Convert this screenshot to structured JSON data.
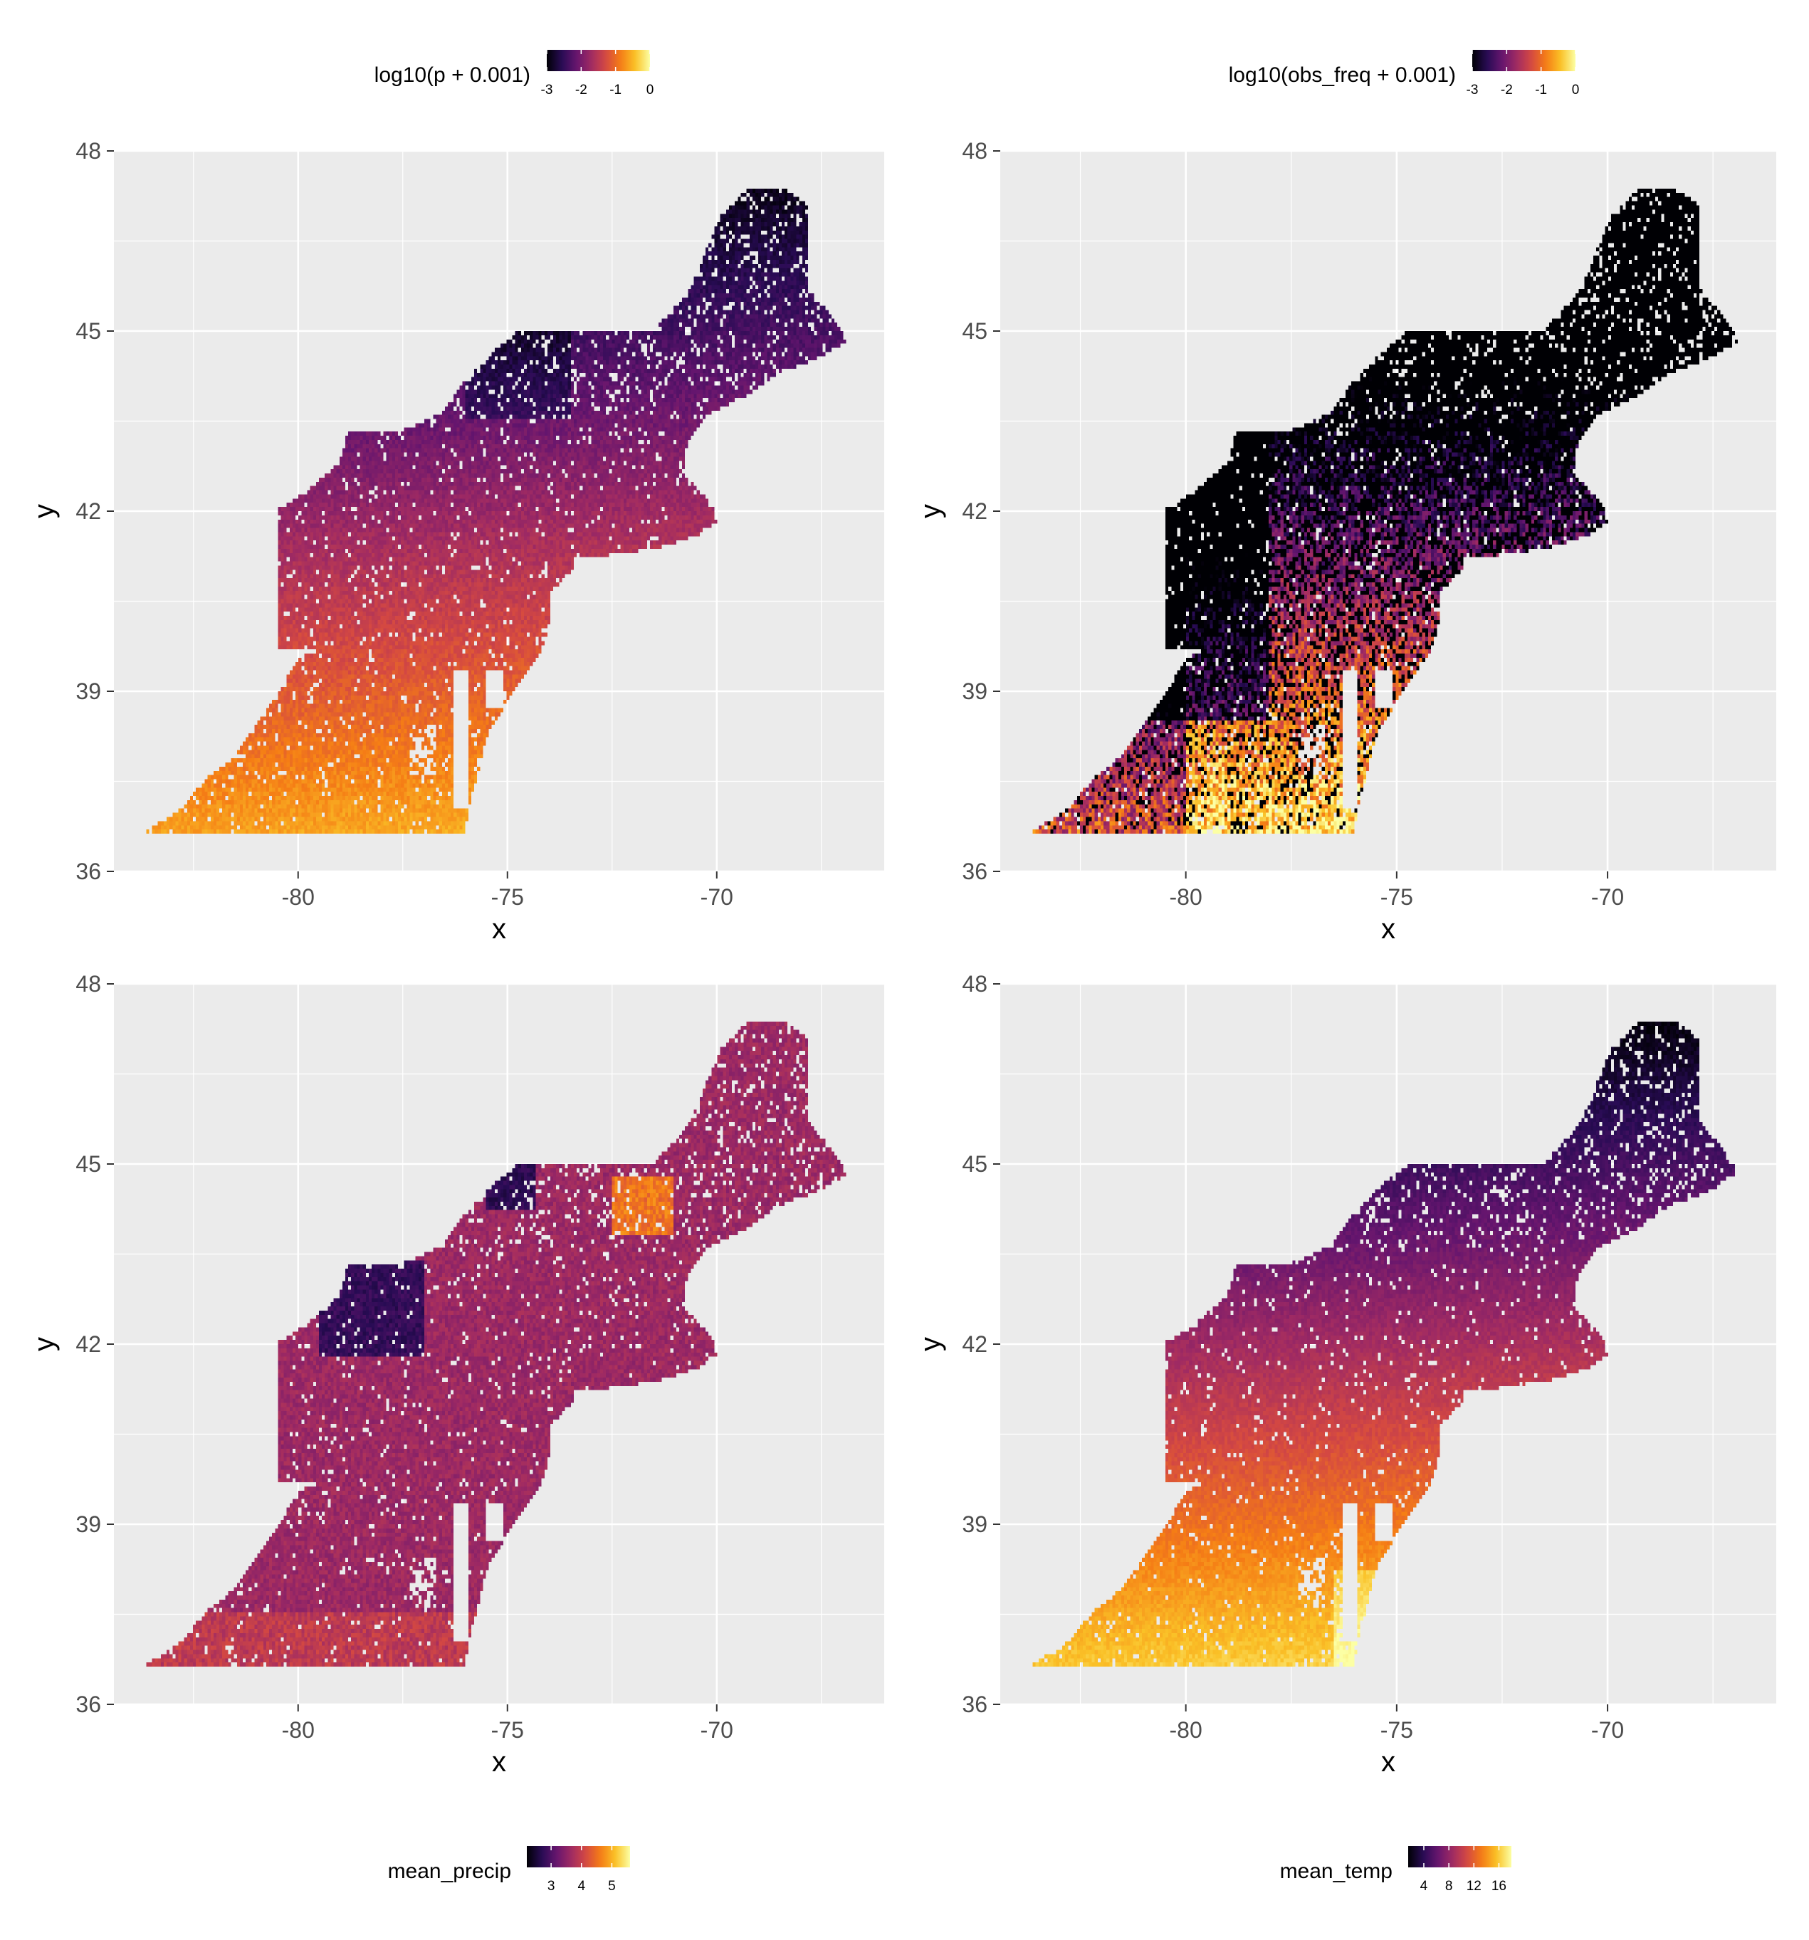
{
  "panels": [
    {
      "id": "p",
      "legend_title": "log10(p + 0.001)",
      "legend_ticks": [
        -3,
        -2,
        -1,
        0
      ],
      "legend_range": [
        -3,
        0
      ],
      "legend_position": "top",
      "field": "p",
      "xlabel": "x",
      "ylabel": "y"
    },
    {
      "id": "obs",
      "legend_title": "log10(obs_freq + 0.001)",
      "legend_ticks": [
        -3,
        -2,
        -1,
        0
      ],
      "legend_range": [
        -3,
        0
      ],
      "legend_position": "top",
      "field": "obs",
      "xlabel": "x",
      "ylabel": "y"
    },
    {
      "id": "precip",
      "legend_title": "mean_precip",
      "legend_ticks": [
        3,
        4,
        5
      ],
      "legend_range": [
        2.2,
        5.6
      ],
      "legend_position": "bottom",
      "field": "precip",
      "xlabel": "x",
      "ylabel": "y"
    },
    {
      "id": "temp",
      "legend_title": "mean_temp",
      "legend_ticks": [
        4,
        8,
        12,
        16
      ],
      "legend_range": [
        1.5,
        18
      ],
      "legend_position": "bottom",
      "field": "temp",
      "xlabel": "x",
      "ylabel": "y"
    }
  ],
  "colormap": "inferno",
  "chart_data": [
    {
      "type": "heatmap",
      "title": "",
      "xlabel": "x",
      "ylabel": "y",
      "xlim": [
        -84.4,
        -66.0
      ],
      "ylim": [
        36.0,
        48.0
      ],
      "xticks": [
        -80,
        -75,
        -70
      ],
      "yticks": [
        36,
        39,
        42,
        45,
        48
      ],
      "grid": true,
      "legend": "top",
      "series": [
        {
          "name": "log10(p + 0.001)",
          "range": [
            -3,
            0
          ]
        }
      ]
    },
    {
      "type": "heatmap",
      "title": "",
      "xlabel": "x",
      "ylabel": "y",
      "xlim": [
        -84.4,
        -66.0
      ],
      "ylim": [
        36.0,
        48.0
      ],
      "xticks": [
        -80,
        -75,
        -70
      ],
      "yticks": [
        36,
        39,
        42,
        45,
        48
      ],
      "grid": true,
      "legend": "top",
      "series": [
        {
          "name": "log10(obs_freq + 0.001)",
          "range": [
            -3,
            0
          ]
        }
      ]
    },
    {
      "type": "heatmap",
      "title": "",
      "xlabel": "x",
      "ylabel": "y",
      "xlim": [
        -84.4,
        -66.0
      ],
      "ylim": [
        36.0,
        48.0
      ],
      "xticks": [
        -80,
        -75,
        -70
      ],
      "yticks": [
        36,
        39,
        42,
        45,
        48
      ],
      "grid": true,
      "legend": "bottom",
      "series": [
        {
          "name": "mean_precip",
          "range": [
            2.2,
            5.6
          ]
        }
      ]
    },
    {
      "type": "heatmap",
      "title": "",
      "xlabel": "x",
      "ylabel": "y",
      "xlim": [
        -84.4,
        -66.0
      ],
      "ylim": [
        36.0,
        48.0
      ],
      "xticks": [
        -80,
        -75,
        -70
      ],
      "yticks": [
        36,
        39,
        42,
        45,
        48
      ],
      "grid": true,
      "legend": "bottom",
      "series": [
        {
          "name": "mean_temp",
          "range": [
            1.5,
            18
          ]
        }
      ]
    }
  ],
  "region_outline": [
    [
      -83.7,
      36.6
    ],
    [
      -82.8,
      37.0
    ],
    [
      -82.2,
      37.5
    ],
    [
      -81.5,
      37.9
    ],
    [
      -80.9,
      38.5
    ],
    [
      -80.5,
      38.9
    ],
    [
      -80.0,
      39.5
    ],
    [
      -79.5,
      39.7
    ],
    [
      -80.5,
      39.7
    ],
    [
      -80.5,
      42.0
    ],
    [
      -79.8,
      42.3
    ],
    [
      -79.0,
      42.8
    ],
    [
      -78.8,
      43.3
    ],
    [
      -77.6,
      43.3
    ],
    [
      -76.6,
      43.6
    ],
    [
      -76.2,
      44.0
    ],
    [
      -75.4,
      44.6
    ],
    [
      -74.7,
      45.0
    ],
    [
      -71.5,
      45.0
    ],
    [
      -71.1,
      45.3
    ],
    [
      -70.6,
      45.7
    ],
    [
      -70.2,
      46.4
    ],
    [
      -69.9,
      46.9
    ],
    [
      -69.2,
      47.4
    ],
    [
      -68.4,
      47.4
    ],
    [
      -67.8,
      47.1
    ],
    [
      -67.8,
      45.7
    ],
    [
      -67.1,
      45.1
    ],
    [
      -66.9,
      44.8
    ],
    [
      -67.7,
      44.5
    ],
    [
      -68.5,
      44.3
    ],
    [
      -69.3,
      43.9
    ],
    [
      -70.2,
      43.6
    ],
    [
      -70.7,
      43.1
    ],
    [
      -70.8,
      42.6
    ],
    [
      -70.1,
      42.1
    ],
    [
      -70.0,
      41.8
    ],
    [
      -70.4,
      41.6
    ],
    [
      -71.2,
      41.4
    ],
    [
      -72.0,
      41.3
    ],
    [
      -73.0,
      41.2
    ],
    [
      -73.6,
      40.9
    ],
    [
      -74.0,
      40.6
    ],
    [
      -74.0,
      40.1
    ],
    [
      -74.2,
      39.6
    ],
    [
      -74.8,
      39.0
    ],
    [
      -75.0,
      38.8
    ],
    [
      -75.5,
      38.2
    ],
    [
      -75.7,
      37.6
    ],
    [
      -75.9,
      37.1
    ],
    [
      -76.0,
      36.6
    ]
  ]
}
